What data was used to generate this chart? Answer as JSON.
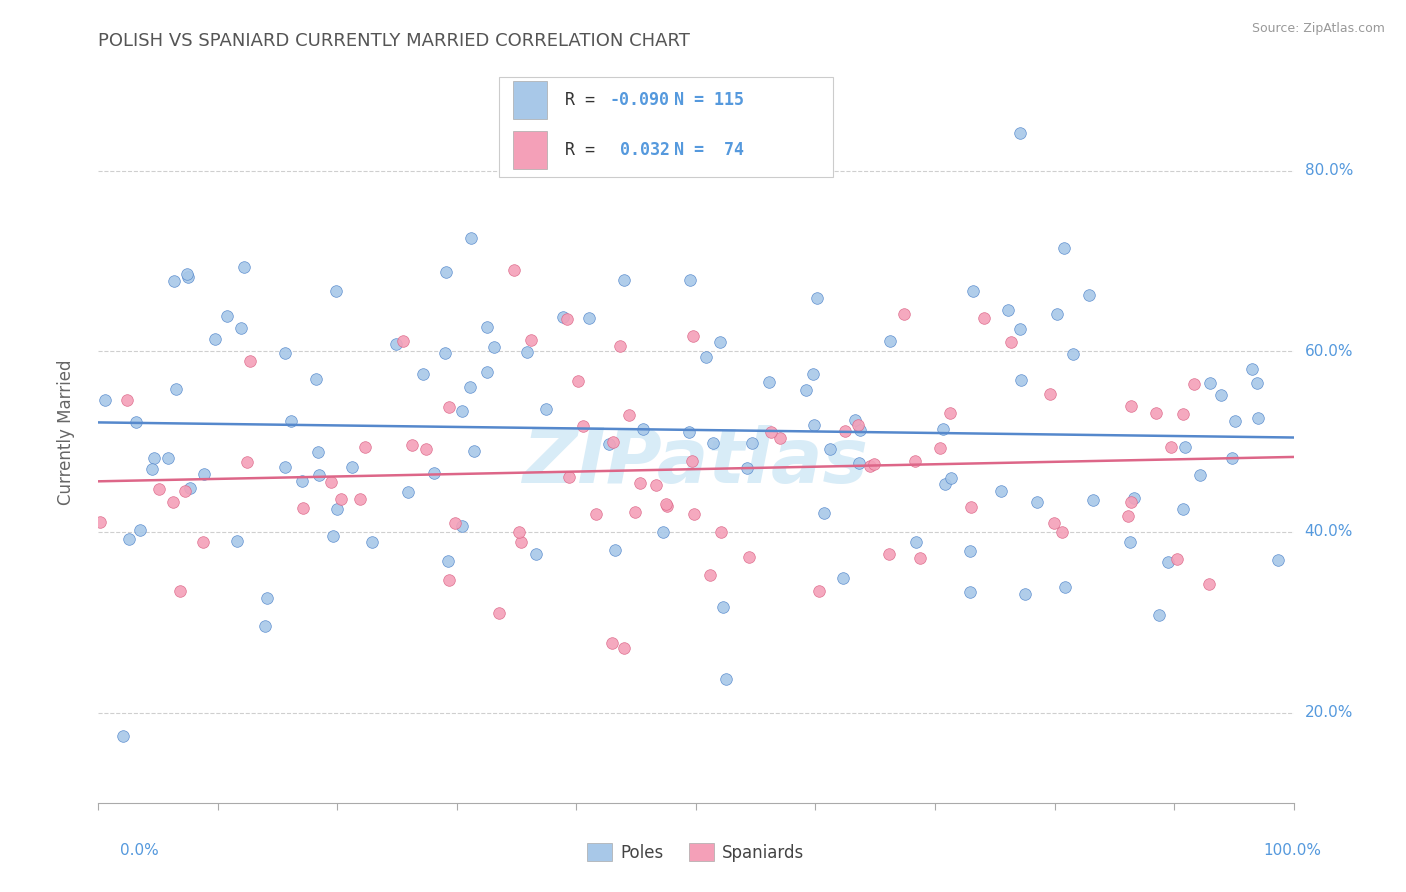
{
  "title": "POLISH VS SPANIARD CURRENTLY MARRIED CORRELATION CHART",
  "source": "Source: ZipAtlas.com",
  "ylabel": "Currently Married",
  "y_ticks": [
    0.2,
    0.4,
    0.6,
    0.8
  ],
  "y_tick_labels": [
    "20.0%",
    "40.0%",
    "60.0%",
    "80.0%"
  ],
  "x_range": [
    0.0,
    1.0
  ],
  "y_range": [
    0.1,
    0.92
  ],
  "poles_color": "#A8C8E8",
  "spaniards_color": "#F4A0B8",
  "poles_line_color": "#5588CC",
  "spaniards_line_color": "#DD6688",
  "poles_R": -0.09,
  "poles_N": 115,
  "spaniards_R": 0.032,
  "spaniards_N": 74,
  "background_color": "#FFFFFF",
  "grid_color": "#BBBBBB",
  "title_color": "#555555",
  "tick_color": "#5599DD",
  "watermark_color": "#C8E4F4"
}
